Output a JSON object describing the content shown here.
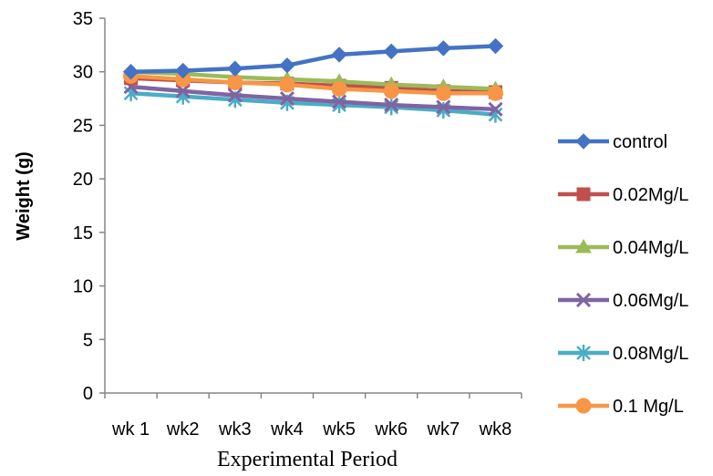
{
  "chart_data": {
    "type": "line",
    "title": "",
    "xlabel": "Experimental Period",
    "ylabel": "Weight (g)",
    "ylim": [
      0,
      35
    ],
    "yticks": [
      0,
      5,
      10,
      15,
      20,
      25,
      30,
      35
    ],
    "categories": [
      "wk 1",
      "wk2",
      "wk3",
      "wk4",
      "wk5",
      "wk6",
      "wk7",
      "wk8"
    ],
    "legend_position": "right",
    "series": [
      {
        "name": "control",
        "color": "#4472c4",
        "marker": "diamond",
        "values": [
          30.0,
          30.1,
          30.3,
          30.6,
          31.6,
          31.9,
          32.2,
          32.4
        ]
      },
      {
        "name": "0.02Mg/L",
        "color": "#c0504d",
        "marker": "square",
        "values": [
          29.4,
          29.2,
          29.0,
          28.9,
          28.7,
          28.5,
          28.2,
          28.1
        ]
      },
      {
        "name": "0.04Mg/L",
        "color": "#9bbb59",
        "marker": "triangle",
        "values": [
          30.0,
          29.8,
          29.5,
          29.3,
          29.1,
          28.8,
          28.6,
          28.4
        ]
      },
      {
        "name": "0.06Mg/L",
        "color": "#8064a2",
        "marker": "x",
        "values": [
          28.6,
          28.2,
          27.8,
          27.5,
          27.2,
          26.9,
          26.7,
          26.5
        ]
      },
      {
        "name": "0.08Mg/L",
        "color": "#4bacc6",
        "marker": "star",
        "values": [
          28.0,
          27.7,
          27.4,
          27.1,
          26.9,
          26.7,
          26.4,
          26.0
        ]
      },
      {
        "name": "0.1 Mg/L",
        "color": "#f79646",
        "marker": "circle",
        "values": [
          29.6,
          29.3,
          29.0,
          28.8,
          28.4,
          28.2,
          28.0,
          28.0
        ]
      }
    ]
  }
}
